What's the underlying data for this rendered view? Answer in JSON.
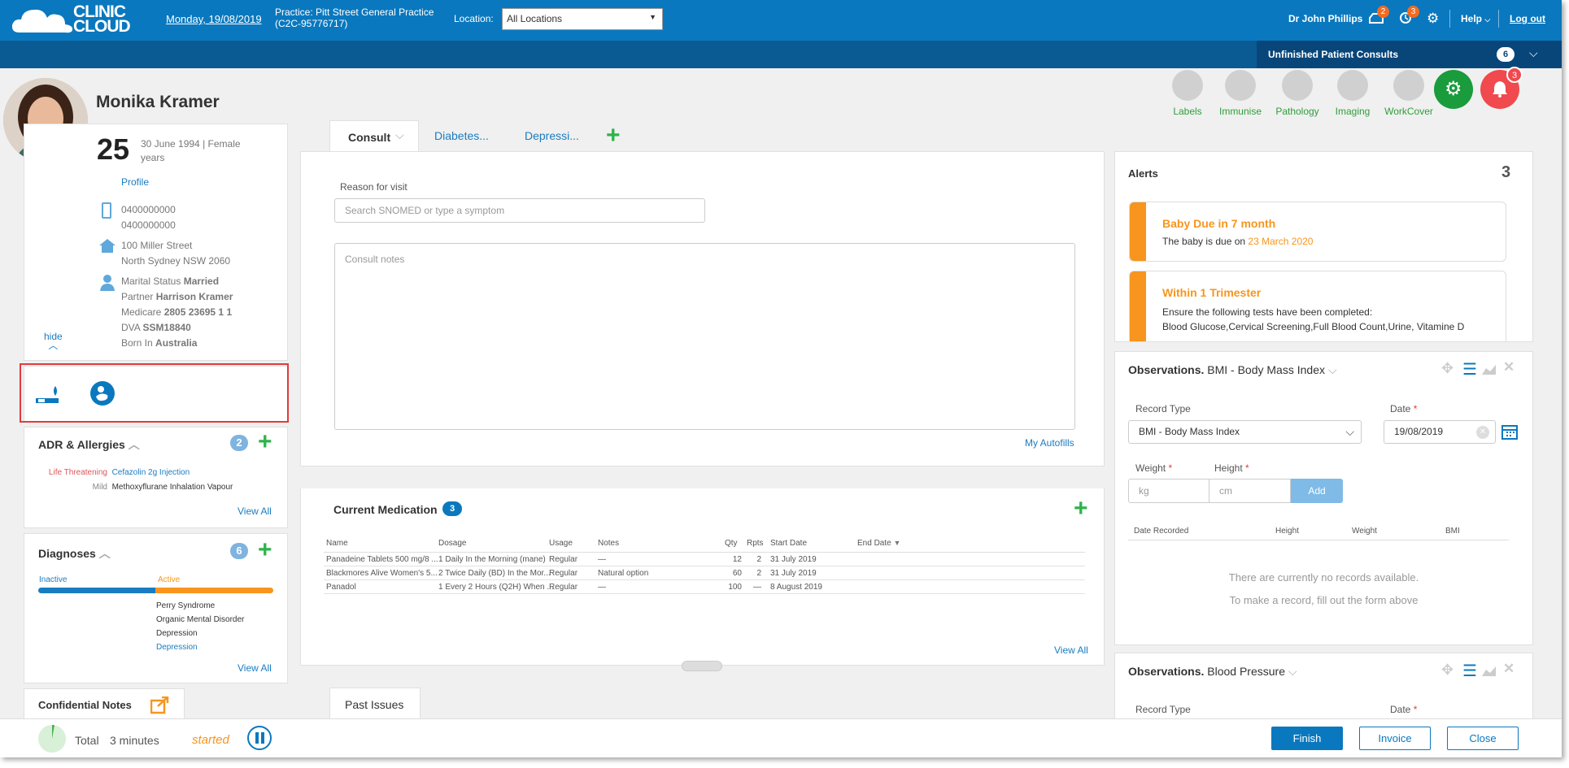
{
  "header": {
    "logo_line1": "CLINIC",
    "logo_line2": "CLOUD",
    "date": "Monday, 19/08/2019",
    "practice_line1": "Practice: Pitt Street General Practice",
    "practice_line2": "(C2C-95776717)",
    "location_label": "Location:",
    "location_value": "All Locations",
    "user": "Dr John Phillips",
    "inbox_count": "2",
    "recall_count": "3",
    "help": "Help",
    "logout": "Log out"
  },
  "unfinished": {
    "label": "Unfinished Patient Consults",
    "count": "6"
  },
  "patient": {
    "name": "Monika Kramer",
    "age": "25",
    "age_unit": "years",
    "dob_sex": "30 June 1994 | Female",
    "profile_link": "Profile",
    "phone1": "0400000000",
    "phone2": "0400000000",
    "address1": "100 Miller Street",
    "address2": "North Sydney NSW 2060",
    "marital_label": "Marital Status",
    "marital_value": "Married",
    "partner_label": "Partner",
    "partner_value": "Harrison Kramer",
    "medicare_label": "Medicare",
    "medicare_value": "2805 23695 1 1",
    "dva_label": "DVA",
    "dva_value": "SSM18840",
    "born_label": "Born In",
    "born_value": "Australia",
    "hide": "hide"
  },
  "allergies": {
    "title": "ADR & Allergies",
    "count": "2",
    "items": [
      {
        "severity": "Life Threatening",
        "name": "Cefazolin 2g Injection"
      },
      {
        "severity": "Mild",
        "name": "Methoxyflurane Inhalation Vapour"
      }
    ],
    "view_all": "View All"
  },
  "diagnoses": {
    "title": "Diagnoses",
    "count": "6",
    "inactive_label": "Inactive",
    "active_label": "Active",
    "items": [
      "Perry Syndrome",
      "Organic Mental Disorder",
      "Depression",
      "Depression"
    ],
    "view_all": "View All"
  },
  "confidential": {
    "title": "Confidential Notes"
  },
  "tabs": [
    "Consult",
    "Diabetes...",
    "Depressi..."
  ],
  "consult": {
    "reason_label": "Reason for visit",
    "reason_placeholder": "Search SNOMED or type a symptom",
    "notes_placeholder": "Consult notes",
    "autofills": "My Autofills"
  },
  "medication": {
    "title": "Current Medication",
    "count": "3",
    "columns": [
      "Name",
      "Dosage",
      "Usage",
      "Notes",
      "Qty",
      "Rpts",
      "Start Date",
      "End Date"
    ],
    "rows": [
      [
        "Panadeine Tablets 500 mg/8 ...",
        "1 Daily In the Morning (mane)",
        "Regular",
        "—",
        "12",
        "2",
        "31 July 2019"
      ],
      [
        "Blackmores Alive Women's 5...",
        "2 Twice Daily (BD) In the Mor...",
        "Regular",
        "Natural option",
        "60",
        "2",
        "31 July 2019"
      ],
      [
        "Panadol",
        "1 Every 2 Hours (Q2H) When ...",
        "Regular",
        "—",
        "100",
        "—",
        "8 August 2019"
      ]
    ],
    "view_all": "View All"
  },
  "past_issues": "Past Issues",
  "toolbar_icons": [
    {
      "label": "Labels",
      "icon": "tag-icon"
    },
    {
      "label": "Immunise",
      "icon": "syringe-icon"
    },
    {
      "label": "Pathology",
      "icon": "microscope-icon"
    },
    {
      "label": "Imaging",
      "icon": "cloud-icon"
    },
    {
      "label": "WorkCover",
      "icon": "hammer-icon"
    }
  ],
  "notif_count": "3",
  "alerts": {
    "title": "Alerts",
    "count": "3",
    "items": [
      {
        "title": "Baby Due in 7 month",
        "text": "The baby is due on",
        "highlight": "23 March 2020"
      },
      {
        "title": "Within 1 Trimester",
        "text": "Ensure the following tests have been completed:",
        "text2": "Blood Glucose,Cervical Screening,Full Blood Count,Urine, Vitamine D"
      }
    ]
  },
  "obs_bmi": {
    "title_bold": "Observations.",
    "title_rest": "BMI - Body Mass Index",
    "record_type_label": "Record Type",
    "record_type_value": "BMI - Body Mass Index",
    "date_label": "Date",
    "date_value": "19/08/2019",
    "weight_label": "Weight",
    "height_label": "Height",
    "weight_placeholder": "kg",
    "height_placeholder": "cm",
    "add": "Add",
    "columns": [
      "Date Recorded",
      "Height",
      "Weight",
      "BMI"
    ],
    "empty1": "There are currently no records available.",
    "empty2": "To make a record, fill out the form above"
  },
  "obs_bp": {
    "title_bold": "Observations.",
    "title_rest": "Blood Pressure",
    "record_type_label": "Record Type",
    "date_label": "Date"
  },
  "footer": {
    "total_label": "Total",
    "duration": "3 minutes",
    "status": "started",
    "finish": "Finish",
    "invoice": "Invoice",
    "close": "Close"
  }
}
